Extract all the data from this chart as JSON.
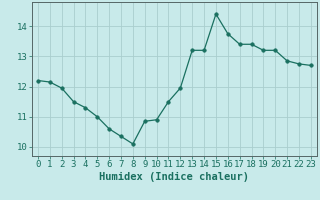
{
  "x": [
    0,
    1,
    2,
    3,
    4,
    5,
    6,
    7,
    8,
    9,
    10,
    11,
    12,
    13,
    14,
    15,
    16,
    17,
    18,
    19,
    20,
    21,
    22,
    23
  ],
  "y": [
    12.2,
    12.15,
    11.95,
    11.5,
    11.3,
    11.0,
    10.6,
    10.35,
    10.1,
    10.85,
    10.9,
    11.5,
    11.95,
    13.2,
    13.2,
    14.4,
    13.75,
    13.4,
    13.4,
    13.2,
    13.2,
    12.85,
    12.75,
    12.7
  ],
  "line_color": "#1a7060",
  "marker": "o",
  "marker_size": 2.5,
  "bg_color": "#c8eaea",
  "grid_color": "#aacece",
  "axis_color": "#556666",
  "xlabel": "Humidex (Indice chaleur)",
  "xlabel_fontsize": 7.5,
  "tick_fontsize": 6.5,
  "ylim": [
    9.7,
    14.8
  ],
  "yticks": [
    10,
    11,
    12,
    13,
    14
  ],
  "xticks": [
    0,
    1,
    2,
    3,
    4,
    5,
    6,
    7,
    8,
    9,
    10,
    11,
    12,
    13,
    14,
    15,
    16,
    17,
    18,
    19,
    20,
    21,
    22,
    23
  ]
}
